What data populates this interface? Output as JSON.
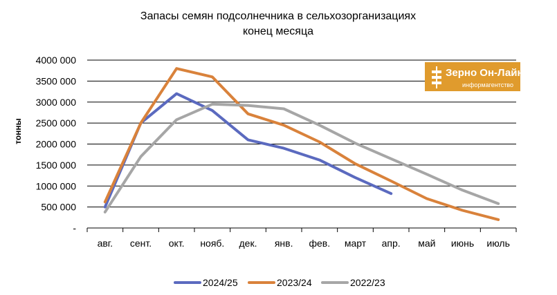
{
  "chart_data": {
    "type": "line",
    "title_lines": [
      "Запасы семян подсолнечника в сельхозорганизациях",
      "конец месяца"
    ],
    "ylabel": "тонны",
    "xlabel": "",
    "categories": [
      "авг.",
      "сент.",
      "окт.",
      "нояб.",
      "дек.",
      "янв.",
      "фев.",
      "март",
      "апр.",
      "май",
      "июнь",
      "июль"
    ],
    "ylim": [
      0,
      4000000
    ],
    "yticks": [
      0,
      500000,
      1000000,
      1500000,
      2000000,
      2500000,
      3000000,
      3500000,
      4000000
    ],
    "ytick_labels": [
      "-",
      "500 000",
      "1000 000",
      "1500 000",
      "2000 000",
      "2500 000",
      "3000 000",
      "3500 000",
      "4000 000"
    ],
    "grid": "horizontal",
    "legend_position": "bottom",
    "series": [
      {
        "name": "2024/25",
        "color": "#5b6abf",
        "values": [
          500000,
          2500000,
          3200000,
          2800000,
          2100000,
          1900000,
          1620000,
          1200000,
          820000,
          null,
          null,
          null
        ]
      },
      {
        "name": "2023/24",
        "color": "#d9823b",
        "values": [
          620000,
          2500000,
          3800000,
          3600000,
          2720000,
          2450000,
          2050000,
          1530000,
          1120000,
          700000,
          420000,
          200000
        ]
      },
      {
        "name": "2022/23",
        "color": "#a6a6a6",
        "values": [
          380000,
          1700000,
          2580000,
          2950000,
          2920000,
          2840000,
          2450000,
          2020000,
          1650000,
          1280000,
          900000,
          580000
        ]
      }
    ]
  },
  "logo": {
    "main": "Зерно Он-Лайн",
    "sub": "информагентство",
    "color": "#e09b2d"
  }
}
